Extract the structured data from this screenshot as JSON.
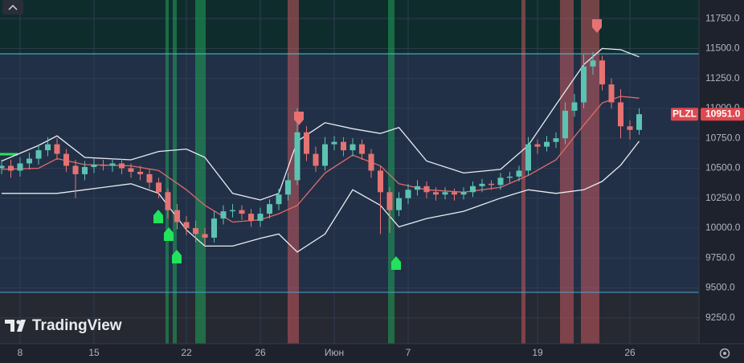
{
  "chart_data": {
    "type": "candlestick",
    "symbol": "PLZL",
    "brand": "TradingView",
    "last_price": {
      "value": 10951,
      "label": "10951.0"
    },
    "categories": [
      null,
      null,
      "8",
      null,
      null,
      null,
      null,
      null,
      null,
      null,
      "15",
      null,
      null,
      null,
      null,
      null,
      null,
      null,
      null,
      null,
      "22",
      null,
      null,
      null,
      null,
      null,
      null,
      null,
      "26",
      null,
      null,
      null,
      null,
      null,
      null,
      null,
      "Июн",
      null,
      null,
      null,
      null,
      null,
      null,
      null,
      "7",
      null,
      null,
      null,
      null,
      null,
      null,
      null,
      null,
      null,
      null,
      null,
      null,
      null,
      "19",
      null,
      null,
      null,
      null,
      null,
      null,
      null,
      null,
      null,
      "26",
      null
    ],
    "open": [
      10500,
      10520,
      10480,
      10540,
      10580,
      10650,
      10700,
      10620,
      10520,
      10450,
      10510,
      10530,
      10520,
      10540,
      10500,
      10470,
      10450,
      10380,
      10300,
      10150,
      10050,
      10000,
      9950,
      9920,
      10080,
      10140,
      10150,
      10120,
      10060,
      10120,
      10200,
      10280,
      10400,
      10800,
      10620,
      10520,
      10700,
      10720,
      10650,
      10700,
      10620,
      10480,
      10300,
      10150,
      10250,
      10320,
      10350,
      10300,
      10280,
      10300,
      10280,
      10300,
      10350,
      10370,
      10360,
      10420,
      10430,
      10480,
      10700,
      10680,
      10720,
      10750,
      10980,
      11050,
      11350,
      11400,
      11200,
      11050,
      10850,
      10820
    ],
    "high": [
      10570,
      10570,
      10590,
      10630,
      10700,
      10760,
      10750,
      10660,
      10570,
      10560,
      10580,
      10570,
      10580,
      10580,
      10540,
      10520,
      10490,
      10420,
      10330,
      10200,
      10100,
      10060,
      10000,
      10140,
      10190,
      10200,
      10190,
      10160,
      10170,
      10240,
      10330,
      10460,
      11000,
      10850,
      10680,
      10760,
      10770,
      10760,
      10750,
      10740,
      10660,
      10520,
      10340,
      10300,
      10370,
      10400,
      10390,
      10340,
      10340,
      10330,
      10340,
      10390,
      10410,
      10400,
      10460,
      10470,
      10520,
      10760,
      10740,
      10770,
      10800,
      11050,
      11120,
      11450,
      11470,
      11440,
      11250,
      11160,
      10900,
      11000
    ],
    "low": [
      10450,
      10420,
      10430,
      10490,
      10530,
      10600,
      10570,
      10470,
      10250,
      10400,
      10460,
      10480,
      10470,
      10450,
      10420,
      10400,
      10330,
      10250,
      10080,
      9990,
      9940,
      9880,
      9860,
      9880,
      10030,
      10090,
      10070,
      10010,
      10010,
      10080,
      10150,
      10230,
      10360,
      10560,
      10470,
      10480,
      10650,
      10600,
      10600,
      10570,
      10420,
      9950,
      9960,
      10100,
      10200,
      10270,
      10250,
      10230,
      10240,
      10230,
      10240,
      10260,
      10300,
      10320,
      10320,
      10380,
      10390,
      10440,
      10620,
      10640,
      10670,
      10700,
      10930,
      11000,
      11280,
      11150,
      11000,
      10750,
      10740,
      10780
    ],
    "close": [
      10520,
      10480,
      10540,
      10580,
      10650,
      10700,
      10620,
      10520,
      10450,
      10510,
      10530,
      10520,
      10540,
      10500,
      10470,
      10450,
      10380,
      10300,
      10150,
      10050,
      10000,
      9950,
      9920,
      10080,
      10140,
      10150,
      10120,
      10060,
      10120,
      10200,
      10280,
      10400,
      10800,
      10620,
      10520,
      10700,
      10720,
      10650,
      10700,
      10620,
      10480,
      10300,
      10150,
      10250,
      10320,
      10350,
      10300,
      10280,
      10300,
      10280,
      10300,
      10350,
      10370,
      10360,
      10420,
      10430,
      10480,
      10700,
      10680,
      10720,
      10750,
      10980,
      11050,
      11350,
      11400,
      11200,
      11050,
      10850,
      10820,
      10951
    ],
    "up_color": "#5cc3b3",
    "down_color": "#e57373",
    "bands": {
      "x": [
        0,
        4,
        6,
        9,
        14,
        17,
        20,
        22,
        25,
        28,
        30,
        32,
        35,
        38,
        41,
        43,
        46,
        50,
        54,
        57,
        60,
        63,
        65,
        67,
        69
      ],
      "upper": [
        10560,
        10690,
        10770,
        10590,
        10570,
        10640,
        10660,
        10590,
        10290,
        10235,
        10290,
        10725,
        10880,
        10830,
        10790,
        10840,
        10560,
        10460,
        10490,
        10690,
        11030,
        11365,
        11500,
        11490,
        11430
      ],
      "middle": [
        10490,
        10500,
        10580,
        10530,
        10520,
        10480,
        10320,
        10190,
        10050,
        10070,
        10120,
        10190,
        10460,
        10610,
        10520,
        10370,
        10320,
        10300,
        10340,
        10440,
        10570,
        10860,
        11045,
        11100,
        11085
      ],
      "lower": [
        10290,
        10290,
        10290,
        10320,
        10370,
        10290,
        9985,
        9850,
        9850,
        9915,
        9950,
        9800,
        9950,
        10320,
        10190,
        10010,
        10080,
        10140,
        10250,
        10320,
        10290,
        10320,
        10390,
        10525,
        10725
      ],
      "band_color": "#e8ecf2",
      "middle_color": "#e06a6a"
    },
    "ylim": [
      9034,
      11905
    ],
    "yticks": [
      {
        "value": 9250,
        "label": "9250.0"
      },
      {
        "value": 9500,
        "label": "9500.0"
      },
      {
        "value": 9750,
        "label": "9750.0"
      },
      {
        "value": 10000,
        "label": "10000.0"
      },
      {
        "value": 10250,
        "label": "10250.0"
      },
      {
        "value": 10500,
        "label": "10500.0"
      },
      {
        "value": 10750,
        "label": "10750.0"
      },
      {
        "value": 11000,
        "label": "11000.0"
      },
      {
        "value": 11250,
        "label": "11250.0"
      },
      {
        "value": 11500,
        "label": "11500.0"
      },
      {
        "value": 11750,
        "label": "11750.0"
      }
    ],
    "grid": true
  }
}
